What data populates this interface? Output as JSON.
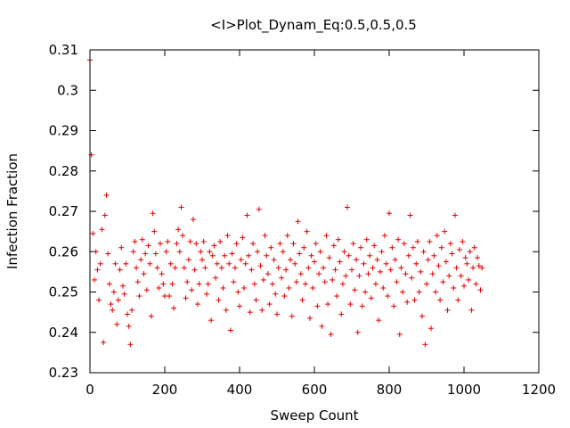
{
  "chart_data": {
    "type": "scatter",
    "title": "<I>Plot_Dynam_Eq:0.5,0.5,0.5",
    "xlabel": "Sweep Count",
    "ylabel": "Infection Fraction",
    "xlim": [
      0,
      1200
    ],
    "ylim": [
      0.23,
      0.31
    ],
    "xticks": [
      0,
      200,
      400,
      600,
      800,
      1000,
      1200
    ],
    "yticks": [
      0.23,
      0.24,
      0.25,
      0.26,
      0.27,
      0.28,
      0.29,
      0.3,
      0.31
    ],
    "xtick_labels": [
      "0",
      "200",
      "400",
      "600",
      "800",
      "1000",
      "1200"
    ],
    "ytick_labels": [
      "0.23",
      "0.24",
      "0.25",
      "0.26",
      "0.27",
      "0.28",
      "0.29",
      "0.3",
      "0.31"
    ],
    "marker": "+",
    "color": "#e00000",
    "grid": false,
    "series": [
      {
        "x_start": 0,
        "x_step": 1,
        "x_end": 1044,
        "values_sampled_every_4": [
          0.3075,
          0.284,
          0.2645,
          0.253,
          0.26,
          0.2555,
          0.248,
          0.257,
          0.2655,
          0.2375,
          0.269,
          0.274,
          0.2595,
          0.252,
          0.247,
          0.2455,
          0.25,
          0.257,
          0.242,
          0.248,
          0.2555,
          0.261,
          0.2515,
          0.2495,
          0.257,
          0.2445,
          0.2415,
          0.237,
          0.2455,
          0.26,
          0.2625,
          0.256,
          0.2525,
          0.249,
          0.258,
          0.263,
          0.2545,
          0.2595,
          0.2505,
          0.2615,
          0.257,
          0.244,
          0.2695,
          0.265,
          0.2595,
          0.256,
          0.251,
          0.262,
          0.2545,
          0.252,
          0.249,
          0.26,
          0.2625,
          0.249,
          0.257,
          0.252,
          0.246,
          0.256,
          0.262,
          0.2655,
          0.26,
          0.271,
          0.264,
          0.256,
          0.2485,
          0.2525,
          0.258,
          0.2625,
          0.2505,
          0.268,
          0.2555,
          0.262,
          0.247,
          0.252,
          0.26,
          0.258,
          0.2625,
          0.256,
          0.2495,
          0.252,
          0.26,
          0.243,
          0.259,
          0.2615,
          0.2535,
          0.257,
          0.248,
          0.2625,
          0.256,
          0.251,
          0.259,
          0.2455,
          0.264,
          0.257,
          0.2405,
          0.2595,
          0.2525,
          0.256,
          0.262,
          0.25,
          0.2465,
          0.258,
          0.2635,
          0.251,
          0.257,
          0.269,
          0.259,
          0.245,
          0.2555,
          0.262,
          0.252,
          0.248,
          0.26,
          0.2705,
          0.2565,
          0.2455,
          0.253,
          0.264,
          0.259,
          0.2545,
          0.247,
          0.261,
          0.252,
          0.258,
          0.2495,
          0.2445,
          0.256,
          0.262,
          0.2535,
          0.26,
          0.249,
          0.2555,
          0.264,
          0.251,
          0.258,
          0.244,
          0.262,
          0.257,
          0.2525,
          0.2675,
          0.2595,
          0.2545,
          0.248,
          0.261,
          0.252,
          0.265,
          0.256,
          0.2435,
          0.259,
          0.251,
          0.2575,
          0.262,
          0.2465,
          0.2545,
          0.26,
          0.2415,
          0.256,
          0.2525,
          0.264,
          0.247,
          0.2585,
          0.2395,
          0.253,
          0.2615,
          0.2555,
          0.249,
          0.263,
          0.2575,
          0.2445,
          0.252,
          0.26,
          0.254,
          0.271,
          0.259,
          0.247,
          0.2555,
          0.262,
          0.2505,
          0.258,
          0.24,
          0.254,
          0.261,
          0.2465,
          0.257,
          0.25,
          0.263,
          0.2545,
          0.259,
          0.2485,
          0.256,
          0.2615,
          0.252,
          0.258,
          0.243,
          0.255,
          0.26,
          0.251,
          0.264,
          0.257,
          0.249,
          0.2695,
          0.2555,
          0.261,
          0.2465,
          0.258,
          0.2525,
          0.263,
          0.2395,
          0.256,
          0.25,
          0.262,
          0.2545,
          0.2475,
          0.259,
          0.269,
          0.2535,
          0.261,
          0.248,
          0.257,
          0.2625,
          0.25,
          0.255,
          0.244,
          0.26,
          0.237,
          0.252,
          0.258,
          0.2625,
          0.241,
          0.2545,
          0.259,
          0.25,
          0.264,
          0.2565,
          0.248,
          0.261,
          0.2525,
          0.265,
          0.2575,
          0.2455,
          0.254,
          0.262,
          0.2595,
          0.251,
          0.269,
          0.256,
          0.248,
          0.2605,
          0.254,
          0.2625,
          0.2515,
          0.2585,
          0.257,
          0.253,
          0.26,
          0.2455,
          0.256,
          0.261,
          0.252,
          0.2585,
          0.2565,
          0.2505,
          0.256
        ]
      }
    ]
  }
}
